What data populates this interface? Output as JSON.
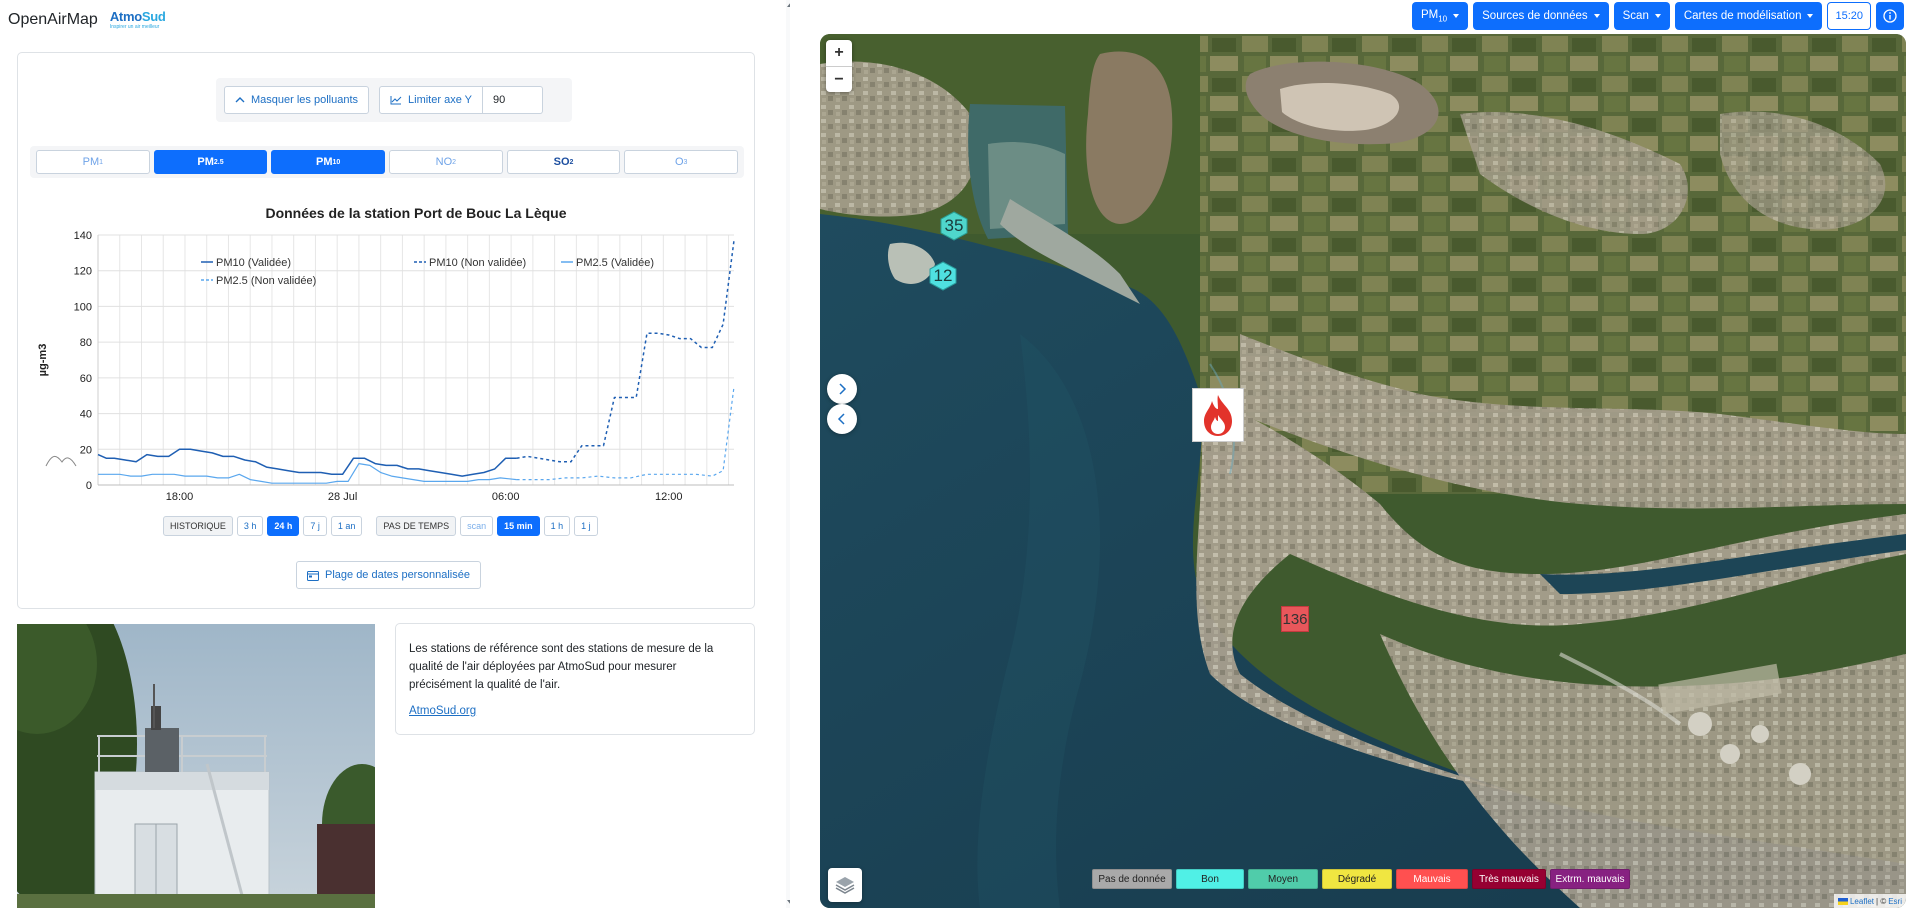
{
  "brand": {
    "name": "OpenAirMap",
    "logo_text_a": "Atmo",
    "logo_text_b": "Sud",
    "logo_tagline": "Inspirer un air meilleur"
  },
  "controls": {
    "hide_pollutants_label": "Masquer les polluants",
    "limit_y_label": "Limiter axe Y",
    "limit_y_value": "90"
  },
  "pollutants": [
    {
      "label": "PM",
      "sub": "1",
      "state": "dim"
    },
    {
      "label": "PM",
      "sub": "2.5",
      "state": "active"
    },
    {
      "label": "PM",
      "sub": "10",
      "state": "active"
    },
    {
      "label": "NO",
      "sub": "2",
      "state": "dim"
    },
    {
      "label": "SO",
      "sub": "2",
      "state": "bold"
    },
    {
      "label": "O",
      "sub": "3",
      "state": "dim"
    }
  ],
  "chart_data": {
    "type": "line",
    "title": "Données de la station Port de Bouc La Lèque",
    "xlabel": "",
    "ylabel": "µg-m3",
    "ylim": [
      0,
      140
    ],
    "yticks": [
      0,
      20,
      40,
      60,
      80,
      100,
      120,
      140
    ],
    "xticks": [
      {
        "label": "18:00",
        "t": 3
      },
      {
        "label": "28 Jul",
        "t": 9
      },
      {
        "label": "06:00",
        "t": 15
      },
      {
        "label": "12:00",
        "t": 21
      }
    ],
    "xrange": [
      0,
      23.4
    ],
    "grid": true,
    "legend_position": "top-left",
    "series": [
      {
        "name": "PM10 (Validée)",
        "color": "#1f5fb3",
        "dash": "",
        "width": 1.5,
        "x": [
          0,
          0.3,
          0.6,
          1.0,
          1.4,
          1.8,
          2.2,
          2.6,
          3.0,
          3.4,
          3.8,
          4.2,
          4.6,
          5.0,
          5.4,
          5.8,
          6.2,
          6.6,
          7.0,
          7.4,
          7.8,
          8.2,
          8.6,
          9.0,
          9.4,
          9.8,
          10.2,
          10.6,
          11.0,
          11.4,
          11.8,
          12.2,
          12.6,
          13.0,
          13.4,
          13.8,
          14.2,
          14.6,
          15.0,
          15.4
        ],
        "y": [
          17,
          15,
          15,
          14,
          13,
          17,
          16,
          16,
          20,
          20,
          19,
          18,
          16,
          16,
          14,
          13,
          10,
          9,
          8,
          7,
          7,
          7,
          6,
          6,
          15,
          15,
          12,
          11,
          11,
          9,
          9,
          8,
          7,
          6,
          5,
          6,
          7,
          9,
          15,
          15
        ]
      },
      {
        "name": "PM10 (Non validée)",
        "color": "#1f5fb3",
        "dash": "3,3",
        "width": 1.5,
        "x": [
          15.4,
          15.8,
          16.2,
          16.6,
          17.0,
          17.4,
          17.8,
          18.2,
          18.6,
          19.0,
          19.4,
          19.8,
          20.2,
          20.6,
          21.0,
          21.4,
          21.8,
          22.2,
          22.6,
          23.0,
          23.4
        ],
        "y": [
          15,
          16,
          15,
          14,
          13,
          13,
          22,
          22,
          22,
          49,
          49,
          49,
          85,
          85,
          84,
          82,
          82,
          77,
          77,
          90,
          137
        ]
      },
      {
        "name": "PM2.5 (Validée)",
        "color": "#5aa7ee",
        "dash": "",
        "width": 1.2,
        "x": [
          0,
          0.4,
          0.8,
          1.2,
          1.6,
          2.0,
          2.4,
          2.8,
          3.2,
          3.6,
          4.0,
          4.4,
          4.8,
          5.2,
          5.6,
          6.0,
          6.4,
          6.8,
          7.2,
          7.6,
          8.0,
          8.4,
          8.8,
          9.2,
          9.6,
          10.0,
          10.4,
          10.8,
          11.2,
          11.6,
          12.0,
          12.4,
          12.8,
          13.2,
          13.6,
          14.0,
          14.4,
          14.8,
          15.4
        ],
        "y": [
          6,
          6,
          6,
          5,
          5,
          6,
          6,
          6,
          5,
          5,
          5,
          4,
          4,
          6,
          3,
          2,
          1,
          1,
          1,
          1,
          1,
          1,
          2,
          2,
          12,
          11,
          7,
          5,
          4,
          3,
          2,
          2,
          2,
          2,
          2,
          3,
          3,
          4,
          3
        ]
      },
      {
        "name": "PM2.5 (Non validée)",
        "color": "#5aa7ee",
        "dash": "3,3",
        "width": 1.2,
        "x": [
          15.4,
          16.0,
          16.6,
          17.2,
          17.8,
          18.4,
          19.0,
          19.6,
          20.2,
          20.8,
          21.4,
          22.0,
          22.6,
          23.0,
          23.4
        ],
        "y": [
          3,
          3,
          3,
          4,
          4,
          5,
          4,
          4,
          6,
          6,
          6,
          6,
          5,
          8,
          55
        ]
      }
    ]
  },
  "time_controls": {
    "history_label": "HISTORIQUE",
    "ranges": [
      {
        "label": "3 h",
        "state": "normal"
      },
      {
        "label": "24 h",
        "state": "active"
      },
      {
        "label": "7 j",
        "state": "normal"
      },
      {
        "label": "1 an",
        "state": "normal"
      }
    ],
    "step_label": "PAS DE TEMPS",
    "steps": [
      {
        "label": "scan",
        "state": "dim"
      },
      {
        "label": "15 min",
        "state": "active"
      },
      {
        "label": "1 h",
        "state": "normal"
      },
      {
        "label": "1 j",
        "state": "normal"
      }
    ]
  },
  "custom_range_label": "Plage de dates personnalisée",
  "info": {
    "text": "Les stations de référence sont des stations de mesure de la qualité de l'air déployées par AtmoSud pour mesurer précisément la qualité de l'air.",
    "link": "AtmoSud.org"
  },
  "nav": {
    "pollutant_label": "PM",
    "pollutant_sub": "10",
    "sources_label": "Sources de données",
    "scan_label": "Scan",
    "models_label": "Cartes de modélisation",
    "time": "15:20"
  },
  "map": {
    "zoom_in": "+",
    "zoom_out": "−",
    "markers": [
      {
        "value": "35",
        "color": "#4fd6cc"
      },
      {
        "value": "12",
        "color": "#4fe0e0"
      },
      {
        "value": "136",
        "color": "#e8575b"
      }
    ],
    "legend": [
      {
        "label": "Pas de donnée",
        "color": "#a9a9a9",
        "text": "#222"
      },
      {
        "label": "Bon",
        "color": "#50f0e6",
        "text": "#222"
      },
      {
        "label": "Moyen",
        "color": "#50ccaa",
        "text": "#222"
      },
      {
        "label": "Dégradé",
        "color": "#f0e641",
        "text": "#222"
      },
      {
        "label": "Mauvais",
        "color": "#ff5050",
        "text": "#fff"
      },
      {
        "label": "Très mauvais",
        "color": "#960032",
        "text": "#fff"
      },
      {
        "label": "Extrm. mauvais",
        "color": "#872181",
        "text": "#fff"
      }
    ],
    "attribution_leaflet": "Leaflet",
    "attribution_sep": "| ©",
    "attribution_esri": "Esri"
  }
}
